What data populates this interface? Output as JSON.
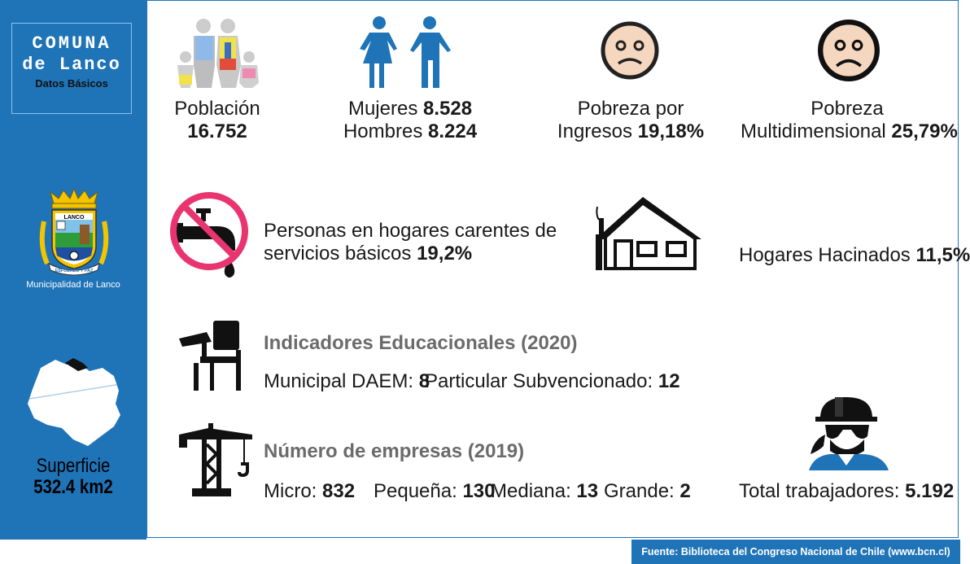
{
  "sidebar": {
    "title_line1": "COMUNA",
    "title_line2": "de Lanco",
    "title_line3": "Datos Básicos",
    "crest_top_text": "LANCO",
    "crest_banner_text": "ESFUERZO Y PAZ",
    "municipality_caption": "Municipalidad de Lanco",
    "surface_label": "Superficie",
    "surface_value": "532.4 km2"
  },
  "stats": {
    "population_label": "Población",
    "population_value": "16.752",
    "women_label": "Mujeres",
    "women_value": "8.528",
    "men_label": "Hombres",
    "men_value": "8.224",
    "income_poverty_label_1": "Pobreza por",
    "income_poverty_label_2": "Ingresos",
    "income_poverty_value": "19,18%",
    "multi_poverty_label_1": "Pobreza",
    "multi_poverty_label_2": "Multidimensional",
    "multi_poverty_value": "25,79%",
    "basic_services_label_1": "Personas en hogares carentes de",
    "basic_services_label_2": "servicios básicos",
    "basic_services_value": "19,2%",
    "overcrowding_label": "Hogares Hacinados",
    "overcrowding_value": "11,5%"
  },
  "education": {
    "title": "Indicadores Educacionales (2020)",
    "municipal_label": "Municipal DAEM:",
    "municipal_value": "8",
    "subsidized_label": "Particular Subvencionado:",
    "subsidized_value": "12"
  },
  "companies": {
    "title": "Número de empresas (2019)",
    "micro_label": "Micro:",
    "micro_value": "832",
    "small_label": "Pequeña:",
    "small_value": "130",
    "medium_label": "Mediana:",
    "medium_value": "13",
    "large_label": "Grande:",
    "large_value": "2",
    "workers_label": "Total trabajadores:",
    "workers_value": "5.192"
  },
  "footer": {
    "source": "Fuente: Biblioteca del Congreso Nacional de Chile (www.bcn.cl)"
  },
  "colors": {
    "brand_blue": "#1f74b8",
    "muted_title": "#6b6b6b",
    "no_sign_pink": "#e8356f",
    "face_skin": "#f5d7c0"
  },
  "icons": {
    "population": "family-icon",
    "gender": "man-woman-icon",
    "income_poverty": "sad-face-icon",
    "multi_poverty": "sad-face-icon",
    "basic_services": "no-water-tap-icon",
    "overcrowding": "house-icon",
    "education": "school-desk-icon",
    "companies": "construction-crane-icon",
    "workers": "worker-helmet-icon"
  }
}
